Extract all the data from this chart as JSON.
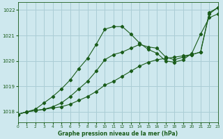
{
  "title": "Graphe pression niveau de la mer (hPa)",
  "background_color": "#cee8ee",
  "grid_color": "#aacdd5",
  "line_color": "#1a5c1a",
  "x_min": 0,
  "x_max": 23,
  "y_min": 1017.6,
  "y_max": 1022.3,
  "yticks": [
    1018,
    1019,
    1020,
    1021,
    1022
  ],
  "xticks": [
    0,
    1,
    2,
    3,
    4,
    5,
    6,
    7,
    8,
    9,
    10,
    11,
    12,
    13,
    14,
    15,
    16,
    17,
    18,
    19,
    20,
    21,
    22,
    23
  ],
  "series1_x": [
    0,
    1,
    2,
    3,
    4,
    5,
    6,
    7,
    8,
    9,
    10,
    11,
    12,
    13,
    14,
    15,
    16,
    17,
    18,
    19,
    20,
    21,
    22,
    23
  ],
  "series1_y": [
    1017.9,
    1018.0,
    1018.05,
    1018.1,
    1018.15,
    1018.2,
    1018.3,
    1018.45,
    1018.6,
    1018.8,
    1019.05,
    1019.2,
    1019.4,
    1019.6,
    1019.8,
    1019.95,
    1020.05,
    1020.1,
    1020.15,
    1020.2,
    1020.25,
    1020.35,
    1021.85,
    1022.1
  ],
  "series2_x": [
    0,
    1,
    2,
    3,
    4,
    5,
    6,
    7,
    8,
    9,
    10,
    11,
    12,
    13,
    14,
    15,
    16,
    17,
    18,
    19,
    20,
    21,
    22,
    23
  ],
  "series2_y": [
    1017.9,
    1018.0,
    1018.1,
    1018.35,
    1018.6,
    1018.9,
    1019.25,
    1019.7,
    1020.1,
    1020.65,
    1021.25,
    1021.35,
    1021.35,
    1021.05,
    1020.7,
    1020.45,
    1020.3,
    1020.0,
    1019.95,
    1020.05,
    1020.3,
    1021.05,
    1021.7,
    1021.85
  ],
  "series3_x": [
    0,
    1,
    2,
    3,
    4,
    5,
    6,
    7,
    8,
    9,
    10,
    11,
    12,
    13,
    14,
    15,
    16,
    17,
    18,
    19,
    20,
    21,
    22,
    23
  ],
  "series3_y": [
    1017.9,
    1018.0,
    1018.05,
    1018.1,
    1018.2,
    1018.35,
    1018.6,
    1018.9,
    1019.2,
    1019.6,
    1020.05,
    1020.25,
    1020.35,
    1020.5,
    1020.65,
    1020.55,
    1020.5,
    1020.15,
    1020.05,
    1020.15,
    1020.25,
    1020.35,
    1021.9,
    1022.1
  ]
}
